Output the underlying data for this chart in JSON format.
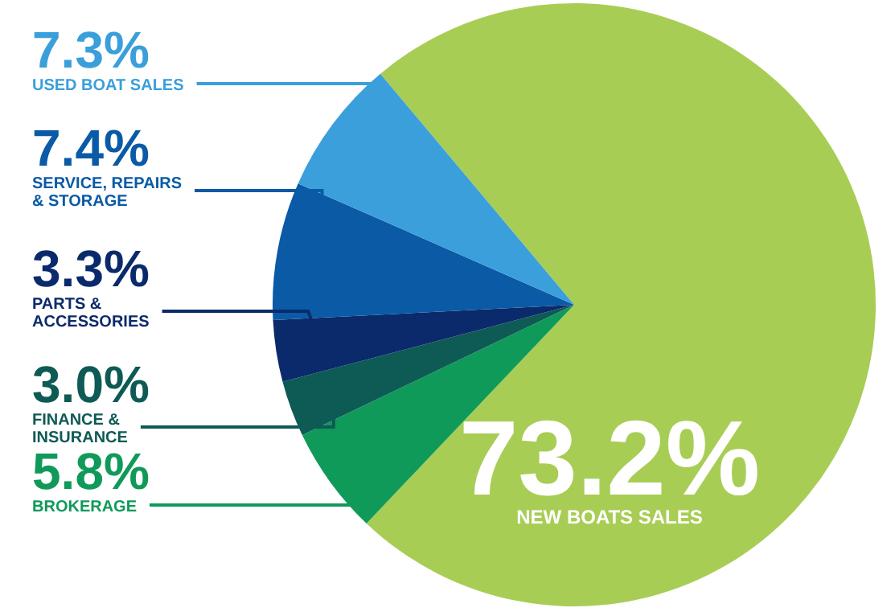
{
  "chart_data": {
    "type": "pie",
    "categories": [
      "NEW BOATS SALES",
      "BROKERAGE",
      "FINANCE & INSURANCE",
      "PARTS & ACCESSORIES",
      "SERVICE, REPAIRS & STORAGE",
      "USED BOAT SALES"
    ],
    "values": [
      73.2,
      5.8,
      3.0,
      3.3,
      7.4,
      7.3
    ],
    "colors": [
      "#a8cd55",
      "#109a5a",
      "#0e5a55",
      "#0b2a6b",
      "#0a5aa6",
      "#3a9fdb"
    ],
    "value_labels": [
      "73.2%",
      "5.8%",
      "3.0%",
      "3.3%",
      "7.4%",
      "7.3%"
    ]
  }
}
